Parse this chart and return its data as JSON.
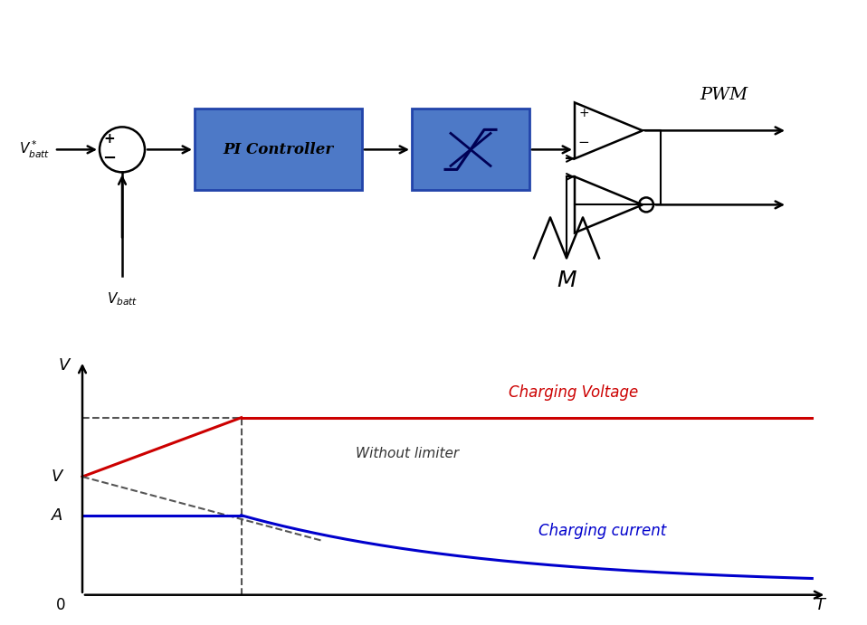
{
  "bg_color": "#ffffff",
  "fig_width": 9.58,
  "fig_height": 6.91,
  "dpi": 100,
  "block_diagram": {
    "vbatt_star_label": "$V^*_{batt}$",
    "vbatt_label": "$V_{batt}$",
    "pi_label": "PI Controller",
    "pwm_label": "PWM",
    "pi_box_color": "#4d79c7",
    "limiter_box_color": "#4d79c7",
    "pi_text_color": "#000080",
    "limiter_face_color": "#aabbee"
  },
  "graph": {
    "V_label": "V",
    "A_label": "A",
    "T_label": "T",
    "zero_label": "0",
    "charging_voltage_label": "Charging Voltage",
    "charging_current_label": "Charging current",
    "without_limiter_label": "Without limiter",
    "charging_voltage_color": "#cc0000",
    "charging_current_color": "#0000cc",
    "dashed_line_color": "#555555"
  }
}
